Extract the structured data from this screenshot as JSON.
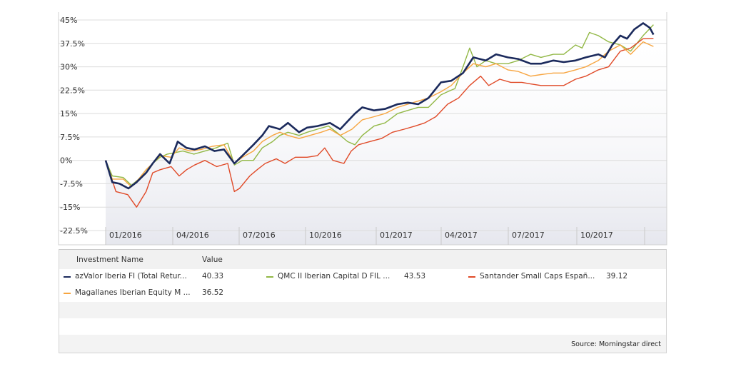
{
  "chart_data": {
    "type": "line",
    "y_ticks": [
      "45%",
      "37.5%",
      "30%",
      "22.5%",
      "15%",
      "7.5%",
      "0%",
      "-7.5%",
      "-15%",
      "-22.5%"
    ],
    "x_ticks": [
      "01/2016",
      "04/2016",
      "07/2016",
      "10/2016",
      "01/2017",
      "04/2017",
      "07/2017",
      "10/2017"
    ],
    "ylim": [
      -22.5,
      45
    ],
    "xlim": [
      "2016-01-01",
      "2018-01-15"
    ],
    "grid": true,
    "series": [
      {
        "name": "azValor Iberia FI (Total Retur...",
        "color": "#1b2a5c",
        "final_value": "40.33",
        "points": [
          [
            "2016-01-01",
            0
          ],
          [
            "2016-01-10",
            -7
          ],
          [
            "2016-01-20",
            -7.5
          ],
          [
            "2016-02-01",
            -9
          ],
          [
            "2016-02-12",
            -7
          ],
          [
            "2016-02-25",
            -4
          ],
          [
            "2016-03-05",
            -1
          ],
          [
            "2016-03-15",
            2
          ],
          [
            "2016-03-28",
            -1
          ],
          [
            "2016-04-08",
            6
          ],
          [
            "2016-04-20",
            4
          ],
          [
            "2016-05-01",
            3.5
          ],
          [
            "2016-05-15",
            4.5
          ],
          [
            "2016-05-28",
            3
          ],
          [
            "2016-06-10",
            3.5
          ],
          [
            "2016-06-24",
            -1
          ],
          [
            "2016-07-05",
            1.5
          ],
          [
            "2016-07-20",
            5
          ],
          [
            "2016-08-01",
            8
          ],
          [
            "2016-08-10",
            11
          ],
          [
            "2016-08-25",
            10
          ],
          [
            "2016-09-05",
            12
          ],
          [
            "2016-09-20",
            9
          ],
          [
            "2016-10-01",
            10.5
          ],
          [
            "2016-10-15",
            11
          ],
          [
            "2016-11-01",
            12
          ],
          [
            "2016-11-15",
            10
          ],
          [
            "2016-11-25",
            12.5
          ],
          [
            "2016-12-05",
            15
          ],
          [
            "2016-12-15",
            17
          ],
          [
            "2016-12-31",
            16
          ],
          [
            "2017-01-15",
            16.5
          ],
          [
            "2017-02-01",
            18
          ],
          [
            "2017-02-15",
            18.5
          ],
          [
            "2017-03-01",
            18
          ],
          [
            "2017-03-15",
            20
          ],
          [
            "2017-04-01",
            25
          ],
          [
            "2017-04-15",
            25.5
          ],
          [
            "2017-05-01",
            28
          ],
          [
            "2017-05-15",
            33
          ],
          [
            "2017-06-01",
            32
          ],
          [
            "2017-06-15",
            34
          ],
          [
            "2017-07-01",
            33
          ],
          [
            "2017-07-15",
            32.5
          ],
          [
            "2017-08-01",
            31
          ],
          [
            "2017-08-15",
            31
          ],
          [
            "2017-09-01",
            32
          ],
          [
            "2017-09-15",
            31.5
          ],
          [
            "2017-10-01",
            32
          ],
          [
            "2017-10-15",
            33
          ],
          [
            "2017-11-01",
            34
          ],
          [
            "2017-11-10",
            33
          ],
          [
            "2017-11-20",
            37
          ],
          [
            "2017-12-01",
            40
          ],
          [
            "2017-12-10",
            39
          ],
          [
            "2017-12-20",
            42
          ],
          [
            "2018-01-01",
            44
          ],
          [
            "2018-01-10",
            42.5
          ],
          [
            "2018-01-15",
            40.3
          ]
        ]
      },
      {
        "name": "QMC II Iberian Capital D FIL ...",
        "color": "#92b846",
        "final_value": "43.53",
        "points": [
          [
            "2016-01-01",
            0
          ],
          [
            "2016-01-10",
            -5
          ],
          [
            "2016-01-25",
            -5.5
          ],
          [
            "2016-02-05",
            -8
          ],
          [
            "2016-02-15",
            -6
          ],
          [
            "2016-02-25",
            -3
          ],
          [
            "2016-03-05",
            -1
          ],
          [
            "2016-03-15",
            1
          ],
          [
            "2016-03-25",
            2
          ],
          [
            "2016-04-05",
            2.5
          ],
          [
            "2016-04-15",
            3
          ],
          [
            "2016-04-30",
            2
          ],
          [
            "2016-05-15",
            3
          ],
          [
            "2016-05-30",
            4
          ],
          [
            "2016-06-15",
            5.5
          ],
          [
            "2016-06-24",
            -1.5
          ],
          [
            "2016-07-05",
            0
          ],
          [
            "2016-07-20",
            0
          ],
          [
            "2016-08-01",
            4
          ],
          [
            "2016-08-15",
            6
          ],
          [
            "2016-08-25",
            8
          ],
          [
            "2016-09-05",
            9
          ],
          [
            "2016-09-20",
            8
          ],
          [
            "2016-10-01",
            9
          ],
          [
            "2016-10-15",
            10
          ],
          [
            "2016-10-30",
            11
          ],
          [
            "2016-11-10",
            9
          ],
          [
            "2016-11-25",
            6
          ],
          [
            "2016-12-05",
            5
          ],
          [
            "2016-12-15",
            8
          ],
          [
            "2016-12-31",
            11
          ],
          [
            "2017-01-15",
            12
          ],
          [
            "2017-02-01",
            15
          ],
          [
            "2017-02-15",
            16
          ],
          [
            "2017-03-01",
            17
          ],
          [
            "2017-03-15",
            17
          ],
          [
            "2017-04-01",
            21
          ],
          [
            "2017-04-10",
            22
          ],
          [
            "2017-04-20",
            23
          ],
          [
            "2017-05-01",
            30
          ],
          [
            "2017-05-10",
            36
          ],
          [
            "2017-05-20",
            30
          ],
          [
            "2017-06-01",
            32
          ],
          [
            "2017-06-15",
            31
          ],
          [
            "2017-07-01",
            31
          ],
          [
            "2017-07-15",
            32
          ],
          [
            "2017-08-01",
            34
          ],
          [
            "2017-08-15",
            33
          ],
          [
            "2017-09-01",
            34
          ],
          [
            "2017-09-15",
            34
          ],
          [
            "2017-10-01",
            37
          ],
          [
            "2017-10-10",
            36
          ],
          [
            "2017-10-20",
            41
          ],
          [
            "2017-11-01",
            40
          ],
          [
            "2017-11-15",
            38
          ],
          [
            "2017-12-01",
            37
          ],
          [
            "2017-12-15",
            35
          ],
          [
            "2018-01-01",
            40
          ],
          [
            "2018-01-15",
            43.5
          ]
        ]
      },
      {
        "name": "Santander Small Caps Españ...",
        "color": "#e04a28",
        "final_value": "39.12",
        "points": [
          [
            "2016-01-01",
            0
          ],
          [
            "2016-01-15",
            -10
          ],
          [
            "2016-01-31",
            -11
          ],
          [
            "2016-02-12",
            -15
          ],
          [
            "2016-02-25",
            -10
          ],
          [
            "2016-03-05",
            -4
          ],
          [
            "2016-03-15",
            -3
          ],
          [
            "2016-03-30",
            -2
          ],
          [
            "2016-04-10",
            -5
          ],
          [
            "2016-04-20",
            -3
          ],
          [
            "2016-05-01",
            -1.5
          ],
          [
            "2016-05-15",
            0
          ],
          [
            "2016-05-31",
            -2
          ],
          [
            "2016-06-15",
            -1
          ],
          [
            "2016-06-24",
            -10
          ],
          [
            "2016-07-01",
            -9
          ],
          [
            "2016-07-15",
            -5
          ],
          [
            "2016-07-25",
            -3
          ],
          [
            "2016-08-05",
            -1
          ],
          [
            "2016-08-20",
            0.5
          ],
          [
            "2016-09-01",
            -1
          ],
          [
            "2016-09-15",
            1
          ],
          [
            "2016-10-01",
            1
          ],
          [
            "2016-10-15",
            1.5
          ],
          [
            "2016-10-25",
            4
          ],
          [
            "2016-11-05",
            0
          ],
          [
            "2016-11-20",
            -1
          ],
          [
            "2016-11-30",
            3
          ],
          [
            "2016-12-10",
            5
          ],
          [
            "2016-12-25",
            6
          ],
          [
            "2017-01-10",
            7
          ],
          [
            "2017-01-25",
            9
          ],
          [
            "2017-02-10",
            10
          ],
          [
            "2017-02-25",
            11
          ],
          [
            "2017-03-10",
            12
          ],
          [
            "2017-03-25",
            14
          ],
          [
            "2017-04-10",
            18
          ],
          [
            "2017-04-25",
            20
          ],
          [
            "2017-05-10",
            24
          ],
          [
            "2017-05-25",
            27
          ],
          [
            "2017-06-05",
            24
          ],
          [
            "2017-06-20",
            26
          ],
          [
            "2017-07-05",
            25
          ],
          [
            "2017-07-20",
            25
          ],
          [
            "2017-08-01",
            24.5
          ],
          [
            "2017-08-15",
            24
          ],
          [
            "2017-09-01",
            24
          ],
          [
            "2017-09-15",
            24
          ],
          [
            "2017-10-01",
            26
          ],
          [
            "2017-10-15",
            27
          ],
          [
            "2017-11-01",
            29
          ],
          [
            "2017-11-15",
            30
          ],
          [
            "2017-12-01",
            35
          ],
          [
            "2017-12-15",
            36
          ],
          [
            "2018-01-01",
            39
          ],
          [
            "2018-01-15",
            39.1
          ]
        ]
      },
      {
        "name": "Magallanes Iberian Equity M ...",
        "color": "#f7a540",
        "final_value": "36.52",
        "points": [
          [
            "2016-01-01",
            0
          ],
          [
            "2016-01-10",
            -6
          ],
          [
            "2016-01-25",
            -6
          ],
          [
            "2016-02-05",
            -8.5
          ],
          [
            "2016-02-15",
            -6
          ],
          [
            "2016-02-25",
            -3
          ],
          [
            "2016-03-05",
            -1
          ],
          [
            "2016-03-15",
            1.5
          ],
          [
            "2016-03-30",
            1
          ],
          [
            "2016-04-10",
            4
          ],
          [
            "2016-04-25",
            3
          ],
          [
            "2016-05-10",
            3.5
          ],
          [
            "2016-05-25",
            4.5
          ],
          [
            "2016-06-10",
            5
          ],
          [
            "2016-06-24",
            -1
          ],
          [
            "2016-07-05",
            1
          ],
          [
            "2016-07-20",
            3
          ],
          [
            "2016-08-01",
            6
          ],
          [
            "2016-08-15",
            8
          ],
          [
            "2016-08-25",
            9
          ],
          [
            "2016-09-05",
            8
          ],
          [
            "2016-09-20",
            7
          ],
          [
            "2016-10-05",
            8
          ],
          [
            "2016-10-20",
            9
          ],
          [
            "2016-11-01",
            10
          ],
          [
            "2016-11-15",
            8
          ],
          [
            "2016-12-01",
            10
          ],
          [
            "2016-12-15",
            13
          ],
          [
            "2016-12-31",
            14
          ],
          [
            "2017-01-15",
            15
          ],
          [
            "2017-02-01",
            17
          ],
          [
            "2017-02-15",
            18
          ],
          [
            "2017-03-01",
            19
          ],
          [
            "2017-03-15",
            20
          ],
          [
            "2017-04-01",
            22
          ],
          [
            "2017-04-15",
            24
          ],
          [
            "2017-05-01",
            28
          ],
          [
            "2017-05-15",
            31
          ],
          [
            "2017-06-01",
            30
          ],
          [
            "2017-06-15",
            31
          ],
          [
            "2017-07-01",
            29
          ],
          [
            "2017-07-15",
            28.5
          ],
          [
            "2017-08-01",
            27
          ],
          [
            "2017-08-15",
            27.5
          ],
          [
            "2017-09-01",
            28
          ],
          [
            "2017-09-15",
            28
          ],
          [
            "2017-10-01",
            29
          ],
          [
            "2017-10-15",
            30
          ],
          [
            "2017-11-01",
            32
          ],
          [
            "2017-11-15",
            35
          ],
          [
            "2017-12-01",
            37
          ],
          [
            "2017-12-15",
            34
          ],
          [
            "2018-01-01",
            38
          ],
          [
            "2018-01-15",
            36.5
          ]
        ]
      }
    ]
  },
  "legend": {
    "header_name": "Investment Name",
    "header_value": "Value",
    "items": [
      {
        "name": "azValor Iberia FI (Total Retur...",
        "value": "40.33",
        "color": "#1b2a5c"
      },
      {
        "name": "QMC II Iberian Capital D FIL ...",
        "value": "43.53",
        "color": "#92b846"
      },
      {
        "name": "Santander Small Caps Españ...",
        "value": "39.12",
        "color": "#e04a28"
      },
      {
        "name": "Magallanes Iberian Equity M ...",
        "value": "36.52",
        "color": "#f7a540"
      }
    ],
    "source": "Source: Morningstar direct"
  }
}
